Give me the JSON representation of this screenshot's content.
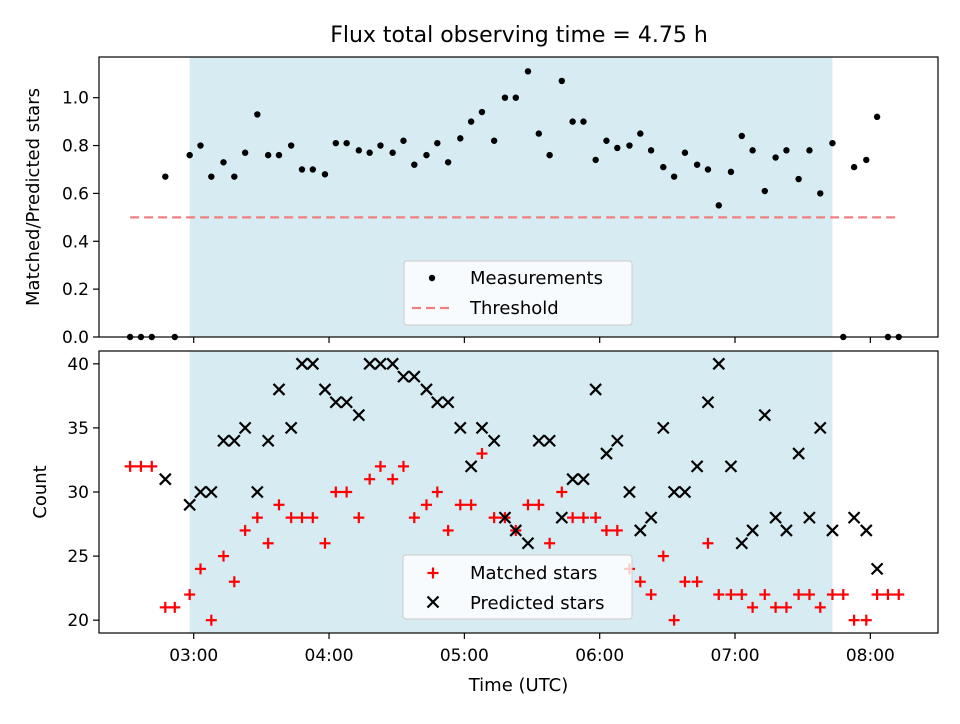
{
  "figure": {
    "title": "Flux total observing time = 4.75 h"
  },
  "chart_data": [
    {
      "type": "scatter",
      "panel": "top",
      "ylabel": "Matched/Predicted stars",
      "ylim": [
        0,
        1.17
      ],
      "yticks": [
        0.0,
        0.2,
        0.4,
        0.6,
        0.8,
        1.0
      ],
      "ytick_labels": [
        "0.0",
        "0.2",
        "0.4",
        "0.6",
        "0.8",
        "1.0"
      ],
      "xlim_hours": [
        2.3,
        8.5
      ],
      "shaded_interval_hours": [
        2.97,
        7.72
      ],
      "threshold": 0.5,
      "threshold_x_hours": [
        2.53,
        8.19
      ],
      "legend_placement": "lower center",
      "legend": [
        "Measurements",
        "Threshold"
      ],
      "colors": {
        "measurements": "#000000",
        "threshold": "#f08080",
        "shade": "#add8e6"
      },
      "series": [
        {
          "name": "Measurements",
          "x_hours": [
            2.53,
            2.61,
            2.69,
            2.79,
            2.86,
            2.97,
            3.05,
            3.13,
            3.22,
            3.3,
            3.38,
            3.47,
            3.55,
            3.63,
            3.72,
            3.8,
            3.88,
            3.97,
            4.05,
            4.13,
            4.22,
            4.3,
            4.38,
            4.47,
            4.55,
            4.63,
            4.72,
            4.8,
            4.88,
            4.97,
            5.05,
            5.13,
            5.22,
            5.3,
            5.38,
            5.47,
            5.55,
            5.63,
            5.72,
            5.8,
            5.88,
            5.97,
            6.05,
            6.13,
            6.22,
            6.3,
            6.38,
            6.47,
            6.55,
            6.63,
            6.72,
            6.8,
            6.88,
            6.97,
            7.05,
            7.13,
            7.22,
            7.3,
            7.38,
            7.47,
            7.55,
            7.63,
            7.72,
            7.8,
            7.88,
            7.97,
            8.05,
            8.13,
            8.21
          ],
          "y": [
            0.0,
            0.0,
            0.0,
            0.67,
            0.0,
            0.76,
            0.8,
            0.67,
            0.73,
            0.67,
            0.77,
            0.93,
            0.76,
            0.76,
            0.8,
            0.7,
            0.7,
            0.68,
            0.81,
            0.81,
            0.78,
            0.77,
            0.8,
            0.77,
            0.82,
            0.72,
            0.76,
            0.81,
            0.73,
            0.83,
            0.9,
            0.94,
            0.82,
            1.0,
            1.0,
            1.11,
            0.85,
            0.76,
            1.07,
            0.9,
            0.9,
            0.74,
            0.82,
            0.79,
            0.8,
            0.85,
            0.78,
            0.71,
            0.67,
            0.77,
            0.72,
            0.7,
            0.55,
            0.69,
            0.84,
            0.78,
            0.61,
            0.75,
            0.78,
            0.66,
            0.78,
            0.6,
            0.81,
            0.0,
            0.71,
            0.74,
            0.92,
            0.0,
            0.0
          ]
        }
      ]
    },
    {
      "type": "scatter",
      "panel": "bottom",
      "xlabel": "Time (UTC)",
      "ylabel": "Count",
      "ylim": [
        19,
        41
      ],
      "yticks": [
        20,
        25,
        30,
        35,
        40
      ],
      "ytick_labels": [
        "20",
        "25",
        "30",
        "35",
        "40"
      ],
      "xticks_hours": [
        3,
        4,
        5,
        6,
        7,
        8
      ],
      "xtick_labels": [
        "03:00",
        "04:00",
        "05:00",
        "06:00",
        "07:00",
        "08:00"
      ],
      "xlim_hours": [
        2.3,
        8.5
      ],
      "shaded_interval_hours": [
        2.97,
        7.72
      ],
      "legend_placement": "lower center",
      "legend": [
        "Matched stars",
        "Predicted stars"
      ],
      "colors": {
        "matched": "#ff0000",
        "predicted": "#000000",
        "shade": "#add8e6"
      },
      "series": [
        {
          "name": "Matched stars",
          "marker": "plus",
          "x_hours": [
            2.53,
            2.61,
            2.69,
            2.79,
            2.86,
            2.97,
            3.05,
            3.13,
            3.22,
            3.3,
            3.38,
            3.47,
            3.55,
            3.63,
            3.72,
            3.8,
            3.88,
            3.97,
            4.05,
            4.13,
            4.22,
            4.3,
            4.38,
            4.47,
            4.55,
            4.63,
            4.72,
            4.8,
            4.88,
            4.97,
            5.05,
            5.13,
            5.22,
            5.3,
            5.38,
            5.47,
            5.55,
            5.63,
            5.72,
            5.8,
            5.88,
            5.97,
            6.05,
            6.13,
            6.22,
            6.3,
            6.38,
            6.47,
            6.55,
            6.63,
            6.72,
            6.8,
            6.88,
            6.97,
            7.05,
            7.13,
            7.22,
            7.3,
            7.38,
            7.47,
            7.55,
            7.63,
            7.72,
            7.8,
            7.88,
            7.97,
            8.05,
            8.13,
            8.21
          ],
          "y": [
            32,
            32,
            32,
            21,
            21,
            22,
            24,
            20,
            25,
            23,
            27,
            28,
            26,
            29,
            28,
            28,
            28,
            26,
            30,
            30,
            28,
            31,
            32,
            31,
            32,
            28,
            29,
            30,
            27,
            29,
            29,
            33,
            28,
            28,
            27,
            29,
            29,
            26,
            30,
            28,
            28,
            28,
            27,
            27,
            24,
            23,
            22,
            25,
            20,
            23,
            23,
            26,
            22,
            22,
            22,
            21,
            22,
            21,
            21,
            22,
            22,
            21,
            22,
            22,
            20,
            20,
            22,
            22,
            22
          ]
        },
        {
          "name": "Predicted stars",
          "marker": "x",
          "x_hours": [
            2.79,
            2.97,
            3.05,
            3.13,
            3.22,
            3.3,
            3.38,
            3.47,
            3.55,
            3.63,
            3.72,
            3.8,
            3.88,
            3.97,
            4.05,
            4.13,
            4.22,
            4.3,
            4.38,
            4.47,
            4.55,
            4.63,
            4.72,
            4.8,
            4.88,
            4.97,
            5.05,
            5.13,
            5.22,
            5.3,
            5.38,
            5.47,
            5.55,
            5.63,
            5.72,
            5.8,
            5.88,
            5.97,
            6.05,
            6.13,
            6.22,
            6.3,
            6.38,
            6.47,
            6.55,
            6.63,
            6.72,
            6.8,
            6.88,
            6.97,
            7.05,
            7.13,
            7.22,
            7.3,
            7.38,
            7.47,
            7.55,
            7.63,
            7.72,
            7.88,
            7.97,
            8.05
          ],
          "y": [
            31,
            29,
            30,
            30,
            34,
            34,
            35,
            30,
            34,
            38,
            35,
            40,
            40,
            38,
            37,
            37,
            36,
            40,
            40,
            40,
            39,
            39,
            38,
            37,
            37,
            35,
            32,
            35,
            34,
            28,
            27,
            26,
            34,
            34,
            28,
            31,
            31,
            38,
            33,
            34,
            30,
            27,
            28,
            35,
            30,
            30,
            32,
            37,
            40,
            32,
            26,
            27,
            36,
            28,
            27,
            33,
            28,
            35,
            27,
            28,
            27,
            24
          ]
        }
      ]
    }
  ]
}
